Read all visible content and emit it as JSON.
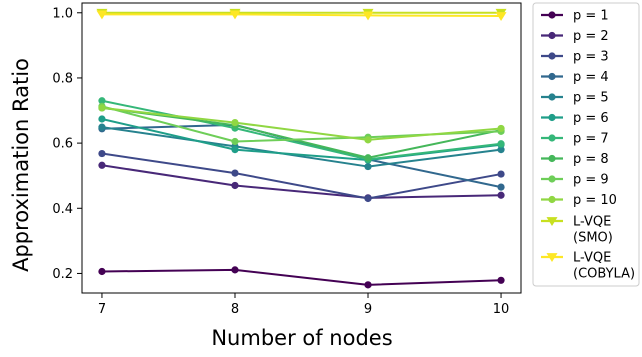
{
  "chart_data": {
    "type": "line",
    "title": "",
    "xlabel": "Number of nodes",
    "ylabel": "Approximation Ratio",
    "x": [
      7,
      8,
      9,
      10
    ],
    "xlim": [
      6.85,
      10.15
    ],
    "ylim": [
      0.14,
      1.03
    ],
    "xticks": [
      "7",
      "8",
      "9",
      "10"
    ],
    "yticks": [
      "0.2",
      "0.4",
      "0.6",
      "0.8",
      "1.0"
    ],
    "grid": false,
    "legend_position": "outside-right",
    "series": [
      {
        "name": "p = 1",
        "color": "#440154",
        "marker": "circle",
        "values": [
          0.206,
          0.211,
          0.165,
          0.179
        ]
      },
      {
        "name": "p = 2",
        "color": "#482878",
        "marker": "circle",
        "values": [
          0.532,
          0.47,
          0.432,
          0.44
        ]
      },
      {
        "name": "p = 3",
        "color": "#3e4989",
        "marker": "circle",
        "values": [
          0.568,
          0.508,
          0.43,
          0.505
        ]
      },
      {
        "name": "p = 4",
        "color": "#31688e",
        "marker": "circle",
        "values": [
          0.644,
          0.656,
          0.55,
          0.465
        ]
      },
      {
        "name": "p = 5",
        "color": "#26828e",
        "marker": "circle",
        "values": [
          0.649,
          0.59,
          0.528,
          0.58
        ]
      },
      {
        "name": "p = 6",
        "color": "#1f9e89",
        "marker": "circle",
        "values": [
          0.674,
          0.58,
          0.548,
          0.595
        ]
      },
      {
        "name": "p = 7",
        "color": "#35b779",
        "marker": "circle",
        "values": [
          0.73,
          0.646,
          0.55,
          0.598
        ]
      },
      {
        "name": "p = 8",
        "color": "#45b75a",
        "marker": "circle",
        "values": [
          0.708,
          0.655,
          0.555,
          0.64
        ]
      },
      {
        "name": "p = 9",
        "color": "#6ece58",
        "marker": "circle",
        "values": [
          0.713,
          0.605,
          0.618,
          0.636
        ]
      },
      {
        "name": "p = 10",
        "color": "#90d743",
        "marker": "circle",
        "values": [
          0.708,
          0.663,
          0.61,
          0.645
        ]
      },
      {
        "name": "L-VQE\n(SMO)",
        "color": "#c8e020",
        "marker": "triangle-down",
        "values": [
          1.0,
          1.0,
          1.0,
          1.0
        ]
      },
      {
        "name": "L-VQE\n(COBYLA)",
        "color": "#fde725",
        "marker": "triangle-down",
        "values": [
          0.995,
          0.995,
          0.992,
          0.99
        ]
      }
    ]
  }
}
